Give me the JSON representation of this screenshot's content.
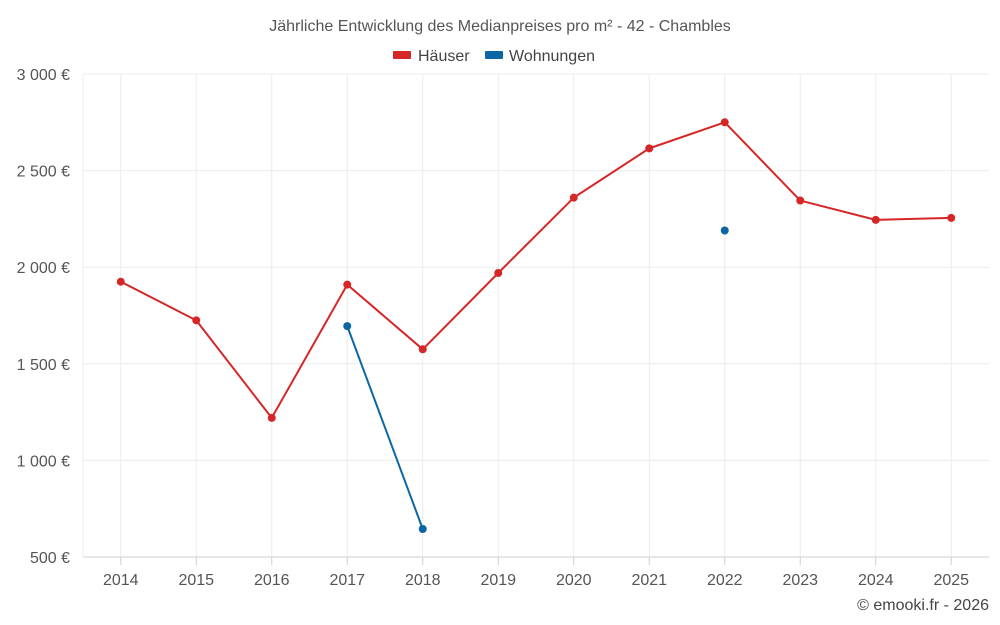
{
  "chart_data": {
    "type": "line",
    "title": "Jährliche Entwicklung des Medianpreises pro m² - 42 - Chambles",
    "xlabel": "",
    "ylabel": "",
    "categories": [
      "2014",
      "2015",
      "2016",
      "2017",
      "2018",
      "2019",
      "2020",
      "2021",
      "2022",
      "2023",
      "2024",
      "2025"
    ],
    "ylim": [
      500,
      3000
    ],
    "yticks": [
      500,
      1000,
      1500,
      2000,
      2500,
      3000
    ],
    "ytick_labels": [
      "500 €",
      "1 000 €",
      "1 500 €",
      "2 000 €",
      "2 500 €",
      "3 000 €"
    ],
    "grid": true,
    "legend_position": "top-center",
    "series": [
      {
        "name": "Häuser",
        "color": "#d62728",
        "values": [
          1925,
          1725,
          1220,
          1910,
          1575,
          1970,
          2360,
          2615,
          2750,
          2345,
          2245,
          2255
        ]
      },
      {
        "name": "Wohnungen",
        "color": "#0b66a3",
        "values": [
          null,
          null,
          null,
          1695,
          645,
          null,
          null,
          null,
          2190,
          null,
          null,
          null
        ]
      }
    ],
    "credit": "© emooki.fr - 2026"
  }
}
